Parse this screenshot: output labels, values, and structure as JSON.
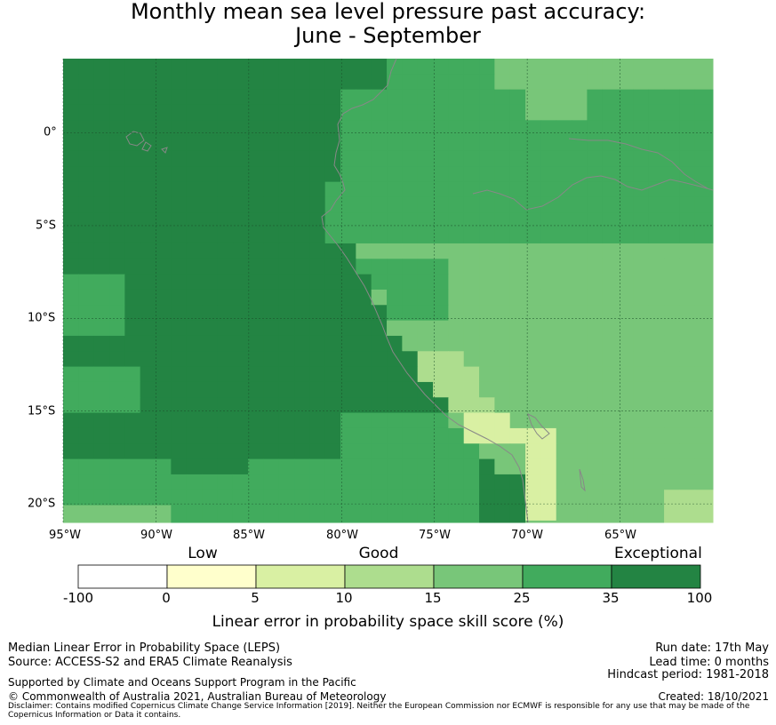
{
  "title_line1": "Monthly mean sea level pressure past accuracy:",
  "title_line2": "June - September",
  "map": {
    "lon_labels": [
      "95°W",
      "90°W",
      "85°W",
      "80°W",
      "75°W",
      "70°W",
      "65°W"
    ],
    "lat_labels": [
      "0°",
      "5°S",
      "10°S",
      "15°S",
      "20°S"
    ],
    "lon_range": [
      -95,
      -60
    ],
    "lat_range": [
      -21,
      4
    ],
    "cell_deg": 0.83,
    "grid_lines": true
  },
  "legend": {
    "categories": [
      "Low",
      "Good",
      "Exceptional"
    ],
    "ticks": [
      "-100",
      "0",
      "5",
      "10",
      "15",
      "25",
      "35",
      "100"
    ],
    "colors": [
      "#ffffff",
      "#ffffcc",
      "#d9f0a3",
      "#addd8e",
      "#78c679",
      "#41ab5d",
      "#238443"
    ],
    "title": "Linear error in probability space skill score (%)"
  },
  "footer": {
    "left_line1": "Median Linear Error in Probability Space (LEPS)",
    "left_line2": "Source: ACCESS-S2 and ERA5 Climate Reanalysis",
    "left_line3": "Supported by Climate and Oceans Support Program in the Pacific",
    "left_line4": "© Commonwealth of Australia 2021, Australian Bureau of Meteorology",
    "right_line1": "Run date: 17th May",
    "right_line2": "Lead time: 0 months",
    "right_line3": "Hindcast period: 1981-2018",
    "right_line4": "Created: 18/10/2021",
    "disclaimer": "Disclaimer: Contains modified Copernicus Climate Change Service Information [2019]. Neither the European Commission nor ECMWF is responsible for any use that may be made of the Copernicus Information or Data it contains."
  }
}
